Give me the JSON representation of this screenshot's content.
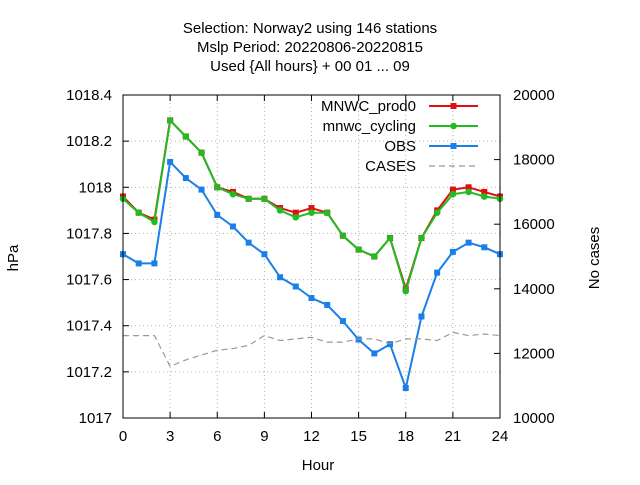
{
  "chart_data": {
    "type": "line",
    "title_lines": [
      "Selection: Norway2 using   146 stations",
      "Mslp   Period: 20220806-20220815",
      "Used {All hours} + 00 01 ... 09"
    ],
    "xlabel": "Hour",
    "ylabel": "hPa",
    "y2label": "No cases",
    "xlim": [
      0,
      24
    ],
    "ylim": [
      1017,
      1018.4
    ],
    "y2lim": [
      10000,
      20000
    ],
    "xticks": [
      0,
      3,
      6,
      9,
      12,
      15,
      18,
      21,
      24
    ],
    "xtick_labels": [
      "0",
      "3",
      "6",
      "9",
      "12",
      "15",
      "18",
      "21",
      "24"
    ],
    "yticks": [
      1017,
      1017.2,
      1017.4,
      1017.6,
      1017.8,
      1018,
      1018.2,
      1018.4
    ],
    "ytick_labels": [
      "1017",
      "1017.2",
      "1017.4",
      "1017.6",
      "1017.8",
      "1018",
      "1018.2",
      "1018.4"
    ],
    "y2ticks": [
      10000,
      12000,
      14000,
      16000,
      18000,
      20000
    ],
    "y2tick_labels": [
      "10000",
      "12000",
      "14000",
      "16000",
      "18000",
      "20000"
    ],
    "grid": true,
    "legend_position": "top-right",
    "x": [
      0,
      1,
      2,
      3,
      4,
      5,
      6,
      7,
      8,
      9,
      10,
      11,
      12,
      13,
      14,
      15,
      16,
      17,
      18,
      19,
      20,
      21,
      22,
      23,
      24
    ],
    "series": [
      {
        "name": "MNWC_prod0",
        "axis": "left",
        "color": "#e01010",
        "marker": "square",
        "dashed": false,
        "values": [
          1017.96,
          1017.89,
          1017.86,
          1018.29,
          1018.22,
          1018.15,
          1018.0,
          1017.98,
          1017.95,
          1017.95,
          1017.91,
          1017.89,
          1017.91,
          1017.89,
          1017.79,
          1017.73,
          1017.7,
          1017.78,
          1017.56,
          1017.78,
          1017.9,
          1017.99,
          1018.0,
          1017.98,
          1017.96
        ]
      },
      {
        "name": "mnwc_cycling",
        "axis": "left",
        "color": "#22bb22",
        "marker": "circle",
        "dashed": false,
        "values": [
          1017.95,
          1017.89,
          1017.85,
          1018.29,
          1018.22,
          1018.15,
          1018.0,
          1017.97,
          1017.95,
          1017.95,
          1017.9,
          1017.87,
          1017.89,
          1017.89,
          1017.79,
          1017.73,
          1017.7,
          1017.78,
          1017.55,
          1017.78,
          1017.89,
          1017.97,
          1017.98,
          1017.96,
          1017.95
        ]
      },
      {
        "name": "OBS",
        "axis": "left",
        "color": "#1a7fe8",
        "marker": "square",
        "dashed": false,
        "values": [
          1017.71,
          1017.67,
          1017.67,
          1018.11,
          1018.04,
          1017.99,
          1017.88,
          1017.83,
          1017.76,
          1017.71,
          1017.61,
          1017.57,
          1017.52,
          1017.49,
          1017.42,
          1017.34,
          1017.28,
          1017.32,
          1017.13,
          1017.44,
          1017.63,
          1017.72,
          1017.76,
          1017.74,
          1017.71
        ]
      },
      {
        "name": "CASES",
        "axis": "right",
        "color": "#999999",
        "marker": "none",
        "dashed": true,
        "values": [
          12550,
          12550,
          12550,
          11600,
          11800,
          11950,
          12100,
          12150,
          12250,
          12550,
          12400,
          12450,
          12500,
          12350,
          12350,
          12450,
          12450,
          12300,
          12450,
          12450,
          12400,
          12650,
          12550,
          12600,
          12550
        ]
      }
    ]
  }
}
